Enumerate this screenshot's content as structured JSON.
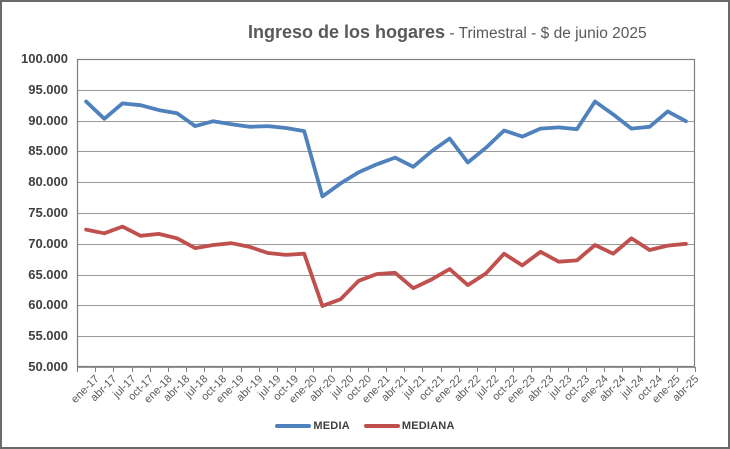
{
  "title": {
    "main": "Ingreso de los hogares",
    "suffix": " - Trimestral - $ de junio 2025"
  },
  "chart_data": {
    "type": "line",
    "title": "Ingreso de los hogares - Trimestral - $ de junio 2025",
    "categories": [
      "ene-17",
      "abr-17",
      "jul-17",
      "oct-17",
      "ene-18",
      "abr-18",
      "jul-18",
      "oct-18",
      "ene-19",
      "abr-19",
      "jul-19",
      "oct-19",
      "ene-20",
      "abr-20",
      "jul-20",
      "oct-20",
      "ene-21",
      "abr-21",
      "jul-21",
      "oct-21",
      "ene-22",
      "abr-22",
      "jul-22",
      "oct-22",
      "ene-23",
      "abr-23",
      "jul-23",
      "oct-23",
      "ene-24",
      "abr-24",
      "jul-24",
      "oct-24",
      "ene-25",
      "abr-25"
    ],
    "series": [
      {
        "name": "MEDIA",
        "color": "#4F81BD",
        "values": [
          93100,
          90300,
          92800,
          92500,
          91700,
          91200,
          89100,
          89900,
          89400,
          89000,
          89100,
          88800,
          88300,
          77700,
          79800,
          81600,
          82900,
          84000,
          82500,
          85000,
          87100,
          83200,
          85600,
          88400,
          87400,
          88700,
          88900,
          88600,
          93100,
          91000,
          88700,
          89000,
          91500,
          89900
        ]
      },
      {
        "name": "MEDIANA",
        "color": "#C0504D",
        "values": [
          72300,
          71700,
          72800,
          71300,
          71600,
          70900,
          69300,
          69800,
          70100,
          69500,
          68500,
          68200,
          68400,
          59900,
          61000,
          64000,
          65100,
          65300,
          62800,
          64200,
          65900,
          63300,
          65200,
          68400,
          66500,
          68700,
          67100,
          67300,
          69800,
          68400,
          70900,
          69000,
          69700,
          70000
        ]
      }
    ],
    "y_axis": {
      "min": 50000,
      "max": 100000,
      "step": 5000,
      "tick_labels": [
        "100.000",
        "95.000",
        "90.000",
        "85.000",
        "80.000",
        "75.000",
        "70.000",
        "65.000",
        "60.000",
        "55.000",
        "50.000"
      ]
    },
    "x_tick_label_rotation_deg": 45,
    "grid": true,
    "legend_position": "bottom"
  },
  "colors": {
    "background": "#FFFFFF",
    "outer_border": "#6A6A6A",
    "gridline": "#9A9A9A",
    "axis_line": "#7F7F7F",
    "title_text": "#595959",
    "y_label_text": "#404040",
    "x_label_text": "#595959",
    "legend_text": "#404040"
  }
}
